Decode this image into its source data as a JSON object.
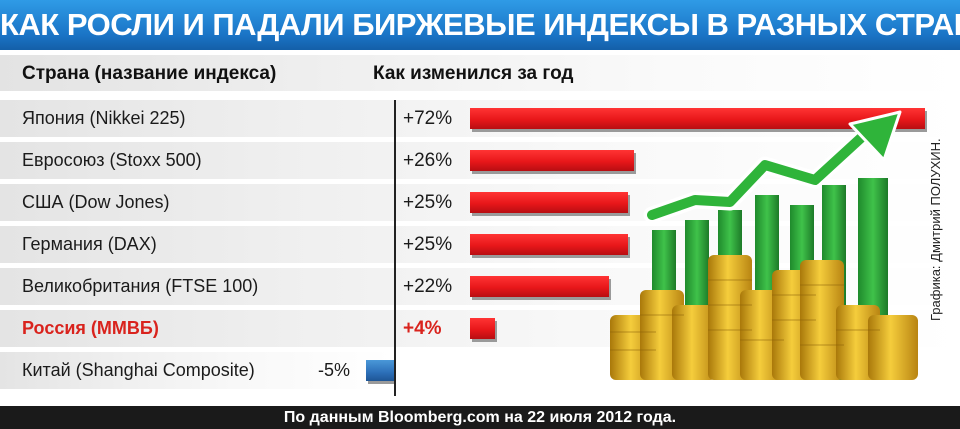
{
  "title": "КАК РОСЛИ И ПАДАЛИ БИРЖЕВЫЕ ИНДЕКСЫ В РАЗНЫХ СТРАНАХ",
  "columns": {
    "country": "Страна (название индекса)",
    "change": "Как изменился за год"
  },
  "credit": "Графика: Дмитрий ПОЛУХИН.",
  "footer": "По данным Bloomberg.com на 22 июля 2012 года.",
  "colors": {
    "title_bar": "#1a74c6",
    "positive_bar": "#e8171a",
    "negative_bar": "#2c6fb8",
    "highlight_text": "#d9231d"
  },
  "chart_data": {
    "type": "bar",
    "orientation": "horizontal",
    "categories": [
      "Япония (Nikkei 225)",
      "Евросоюз (Stoxx 500)",
      "США (Dow Jones)",
      "Германия (DAX)",
      "Великобритания (FTSE 100)",
      "Россия (ММВБ)",
      "Китай (Shanghai Composite)"
    ],
    "values": [
      72,
      26,
      25,
      25,
      22,
      4,
      -5
    ],
    "value_labels": [
      "+72%",
      "+26%",
      "+25%",
      "+25%",
      "+22%",
      "+4%",
      "-5%"
    ],
    "highlight_index": 5,
    "unit": "%",
    "xlim": [
      -5,
      72
    ]
  }
}
